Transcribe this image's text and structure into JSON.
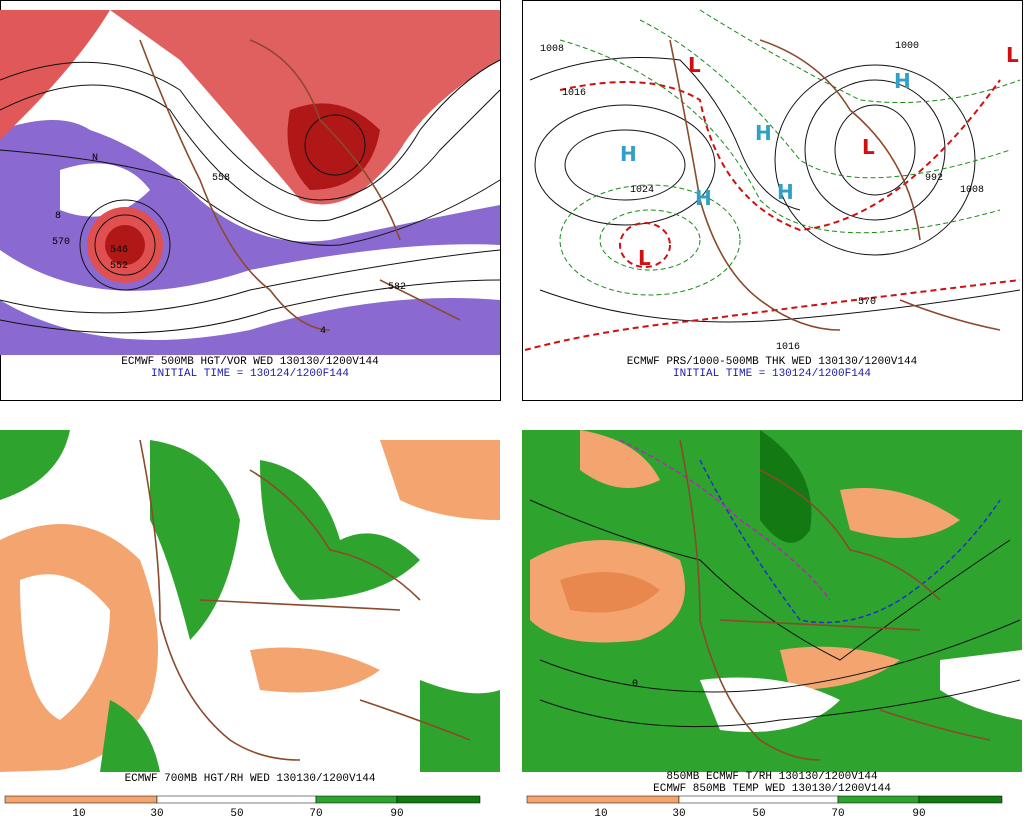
{
  "panels": [
    {
      "caption": [
        "ECMWF 500MB HGT/VOR WED 130130/1200V144",
        "INITIAL TIME = 130124/1200F144"
      ],
      "labels": [
        "570",
        "546",
        "552",
        "558",
        "582",
        "4",
        "8",
        "N"
      ]
    },
    {
      "caption": [
        "ECMWF PRS/1000-500MB THK WED 130130/1200V144",
        "INITIAL TIME = 130124/1200F144"
      ],
      "lows": [
        "L",
        "L",
        "L",
        "L"
      ],
      "highs": [
        "H",
        "H",
        "H",
        "H",
        "H"
      ],
      "labels": [
        "1008",
        "1016",
        "1024",
        "992",
        "1000",
        "570",
        "1016",
        "1008"
      ]
    },
    {
      "caption": [
        "ECMWF 700MB HGT/RH WED 130130/1200V144"
      ],
      "colorbar": [
        10,
        30,
        50,
        70,
        90
      ]
    },
    {
      "caption": [
        "850MB ECMWF T/RH 130130/1200V144",
        "ECMWF 850MB TEMP WED 130130/1200V144"
      ],
      "colorbar": [
        10,
        30,
        50,
        70,
        90
      ],
      "labels": [
        "0"
      ]
    }
  ]
}
